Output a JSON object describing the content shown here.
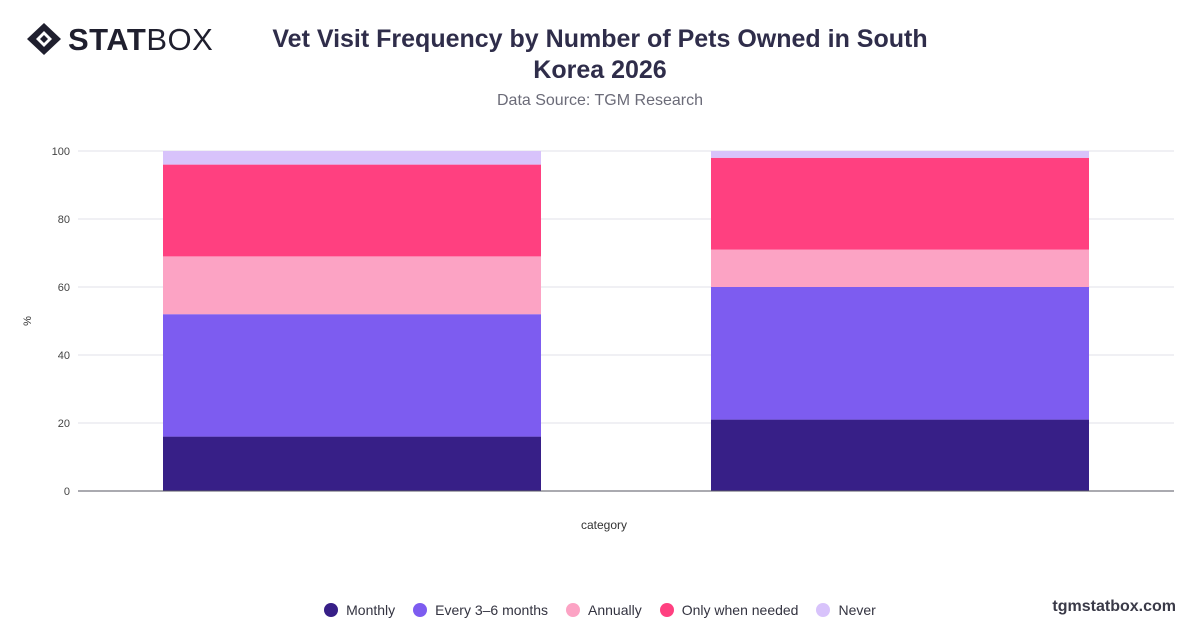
{
  "header": {
    "logo_text_bold": "STAT",
    "logo_text_light": "BOX",
    "logo_icon": "diamond-logo-icon",
    "title": "Vet Visit Frequency by Number of Pets Owned in South Korea 2026",
    "subtitle": "Data Source: TGM Research"
  },
  "footer": {
    "watermark": "tgmstatbox.com"
  },
  "colors": {
    "Monthly": "#371f87",
    "Every 3–6 months": "#7d5cf0",
    "Annually": "#fca3c4",
    "Only when needed": "#ff4080",
    "Never": "#d8c3fb",
    "grid": "#e2e2e8",
    "axis": "#555560"
  },
  "chart_data": {
    "type": "bar",
    "stacked": true,
    "categories": [
      "",
      ""
    ],
    "xlabel": "category",
    "ylabel": "%",
    "ylim": [
      0,
      100
    ],
    "yticks": [
      0,
      20,
      40,
      60,
      80,
      100
    ],
    "grid": true,
    "legend_position": "bottom",
    "series": [
      {
        "name": "Monthly",
        "values": [
          16,
          21
        ]
      },
      {
        "name": "Every 3–6 months",
        "values": [
          36,
          39
        ]
      },
      {
        "name": "Annually",
        "values": [
          17,
          11
        ]
      },
      {
        "name": "Only when needed",
        "values": [
          27,
          27
        ]
      },
      {
        "name": "Never",
        "values": [
          4,
          2
        ]
      }
    ]
  }
}
